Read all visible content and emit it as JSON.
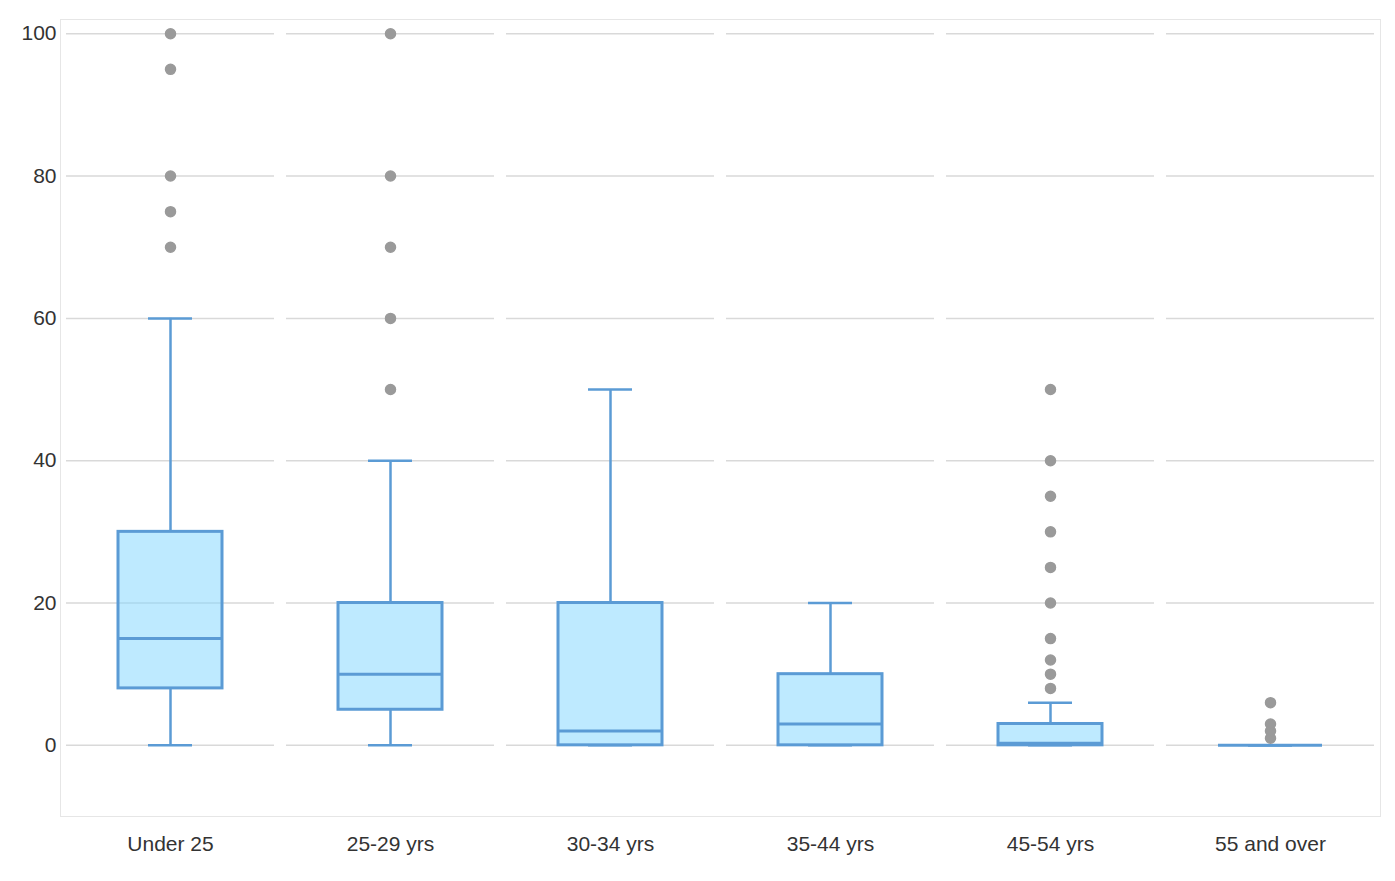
{
  "chart_data": {
    "type": "box",
    "categories": [
      "Under 25",
      "25-29 yrs",
      "30-34 yrs",
      "35-44 yrs",
      "45-54 yrs",
      "55 and over"
    ],
    "whisker_low": [
      0,
      0,
      0,
      0,
      0,
      0
    ],
    "q1": [
      8,
      5,
      0,
      0,
      0,
      0
    ],
    "median": [
      15,
      10,
      2,
      3,
      0.3,
      0
    ],
    "q3": [
      30,
      20,
      20,
      10,
      3,
      0
    ],
    "whisker_high": [
      60,
      40,
      50,
      20,
      6,
      0
    ],
    "outliers": [
      [
        70,
        75,
        80,
        95,
        100
      ],
      [
        50,
        60,
        70,
        80,
        100
      ],
      [],
      [],
      [
        8,
        10,
        12,
        15,
        20,
        25,
        30,
        35,
        40,
        50
      ],
      [
        1,
        2,
        3,
        6
      ]
    ],
    "color": "#5b9bd5",
    "ylim": [
      -10,
      102
    ],
    "yticks": [
      0,
      20,
      40,
      60,
      80,
      100
    ],
    "grid": true,
    "marker": "circle"
  }
}
